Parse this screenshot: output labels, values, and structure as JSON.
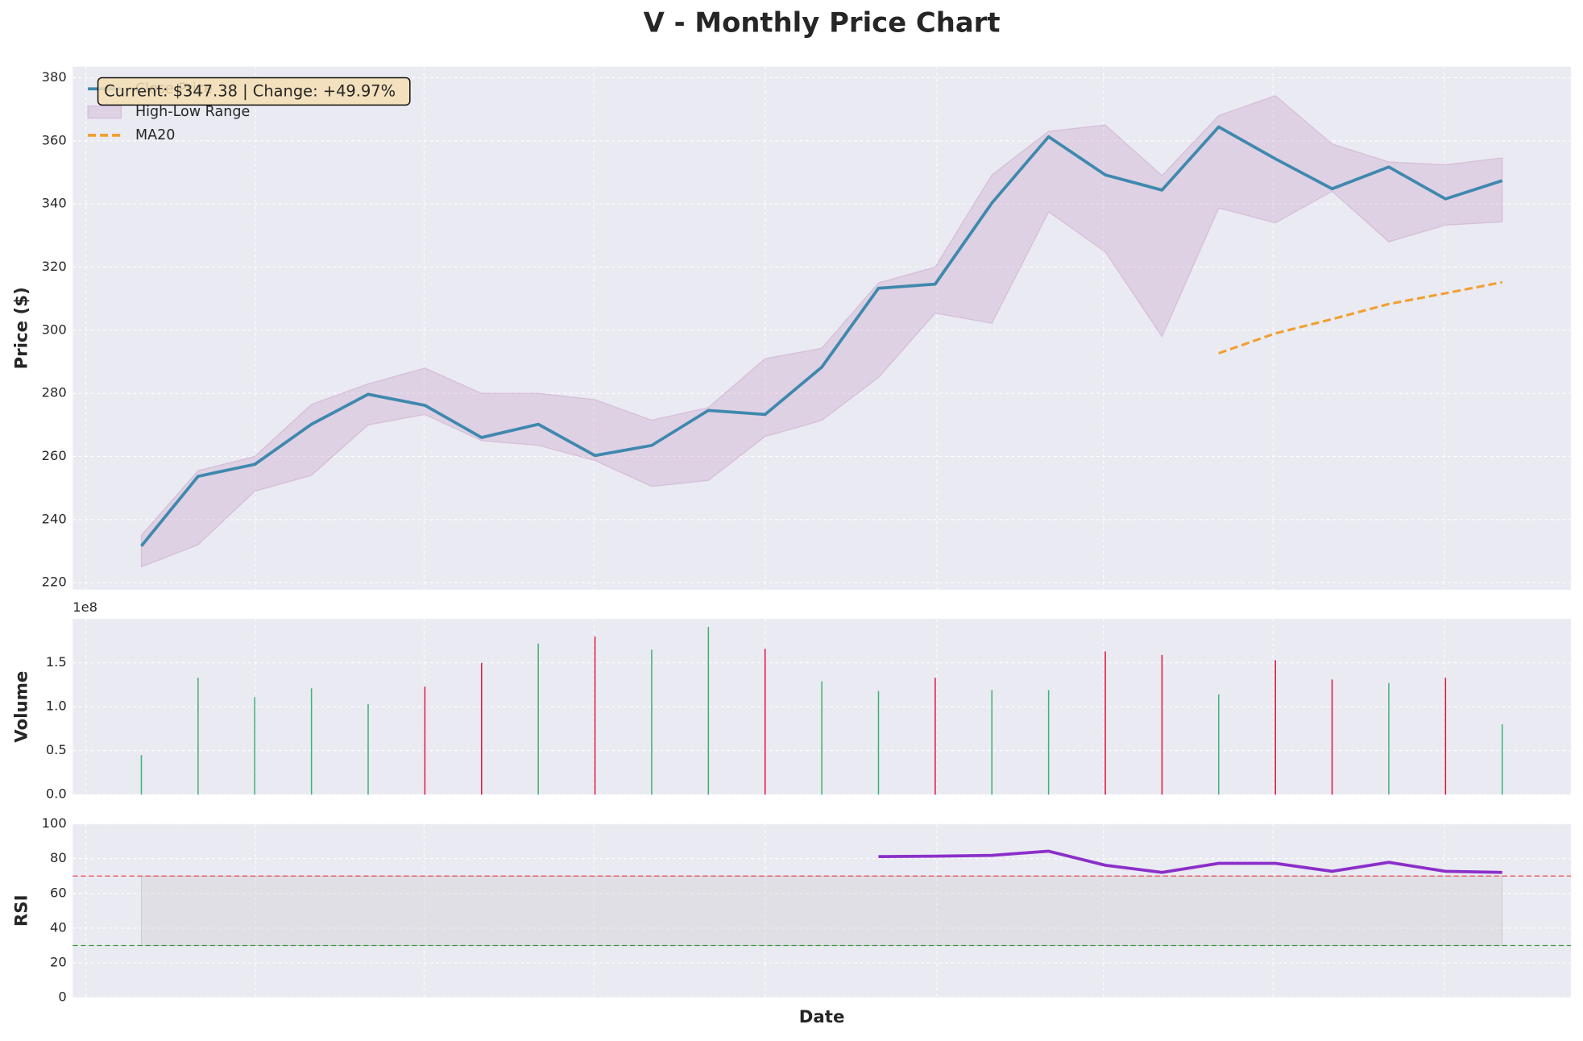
{
  "title": "V - Monthly Price Chart",
  "xlabel": "Date",
  "chart_data": [
    {
      "type": "line",
      "ylabel": "Price ($)",
      "categories": [
        null,
        null,
        null,
        null,
        null,
        null,
        null,
        null,
        null,
        null,
        null,
        null,
        null,
        null,
        null,
        null,
        null,
        null,
        null,
        null,
        null,
        null,
        null,
        null,
        null
      ],
      "series": [
        {
          "name": "Close Price",
          "color": "#3f88ae",
          "values": [
            231.63,
            253.7,
            257.5,
            270.2,
            279.7,
            276.2,
            266,
            270.2,
            260.3,
            263.5,
            274.6,
            273.3,
            288.3,
            313.3,
            314.6,
            340.3,
            361.3,
            349.2,
            344.4,
            364.4,
            354.3,
            344.8,
            351.7,
            341.6,
            347.38
          ]
        },
        {
          "name": "MA20",
          "color": "#f0a030",
          "dashed": true,
          "values": [
            null,
            null,
            null,
            null,
            null,
            null,
            null,
            null,
            null,
            null,
            null,
            null,
            null,
            null,
            null,
            null,
            null,
            null,
            null,
            292.7,
            299,
            303.5,
            308.3,
            311.7,
            315.2
          ]
        }
      ],
      "band": {
        "name": "High-Low Range",
        "color": "#c8a2c8",
        "high": [
          235,
          255.5,
          260,
          276.5,
          283,
          288,
          280,
          280,
          278,
          271.5,
          275.5,
          291,
          294.3,
          315,
          320,
          349.2,
          363,
          365,
          349,
          368,
          374.3,
          359,
          353.3,
          352.4,
          354.6
        ],
        "low": [
          225,
          232,
          249,
          254,
          270,
          273.3,
          265,
          263.5,
          258.7,
          250.5,
          252.4,
          266.3,
          271.4,
          285,
          305.4,
          302.2,
          337.5,
          324.8,
          298,
          338.7,
          334,
          344,
          328,
          333.3,
          334.3
        ]
      },
      "ylim": [
        217.8,
        383.5
      ],
      "yticks": [
        220,
        240,
        260,
        280,
        300,
        320,
        340,
        360,
        380
      ],
      "grid": true,
      "legend": "upper left",
      "annotation": "Current: $347.38 | Change: +49.97%"
    },
    {
      "type": "bar",
      "ylabel": "Volume",
      "offset_label": "1e8",
      "values": [
        0.45,
        1.33,
        1.11,
        1.21,
        1.03,
        1.23,
        1.5,
        1.72,
        1.8,
        1.65,
        1.91,
        1.66,
        1.29,
        1.18,
        1.33,
        1.19,
        1.19,
        1.63,
        1.59,
        1.14,
        1.53,
        1.31,
        1.27,
        1.33,
        0.8
      ],
      "colors": [
        "#3cb371",
        "#3cb371",
        "#3cb371",
        "#3cb371",
        "#3cb371",
        "#dc143c",
        "#dc143c",
        "#3cb371",
        "#dc143c",
        "#3cb371",
        "#3cb371",
        "#dc143c",
        "#3cb371",
        "#3cb371",
        "#dc143c",
        "#3cb371",
        "#3cb371",
        "#dc143c",
        "#dc143c",
        "#3cb371",
        "#dc143c",
        "#dc143c",
        "#3cb371",
        "#dc143c",
        "#3cb371"
      ],
      "ylim": [
        0,
        2.0
      ],
      "yticks": [
        {
          "value": 0,
          "label": "0.0"
        },
        0.5,
        {
          "value": 1,
          "label": "1.0"
        },
        1.5
      ],
      "grid": true
    },
    {
      "type": "line",
      "ylabel": "RSI",
      "series": [
        {
          "color": "#8b2fc9",
          "values": [
            null,
            null,
            null,
            null,
            null,
            null,
            null,
            null,
            null,
            null,
            null,
            null,
            null,
            81.2,
            81.4,
            81.9,
            84.3,
            76.2,
            72.1,
            77.3,
            77.3,
            72.7,
            77.9,
            72.7,
            72.1
          ]
        }
      ],
      "hlines": [
        {
          "value": 70,
          "color": "#e8474f"
        },
        {
          "value": 30,
          "color": "#3a9a3a"
        }
      ],
      "shade_between_hlines": true,
      "ylim": [
        0,
        100
      ],
      "yticks": [
        0,
        20,
        40,
        60,
        80,
        100
      ],
      "grid": true
    }
  ]
}
